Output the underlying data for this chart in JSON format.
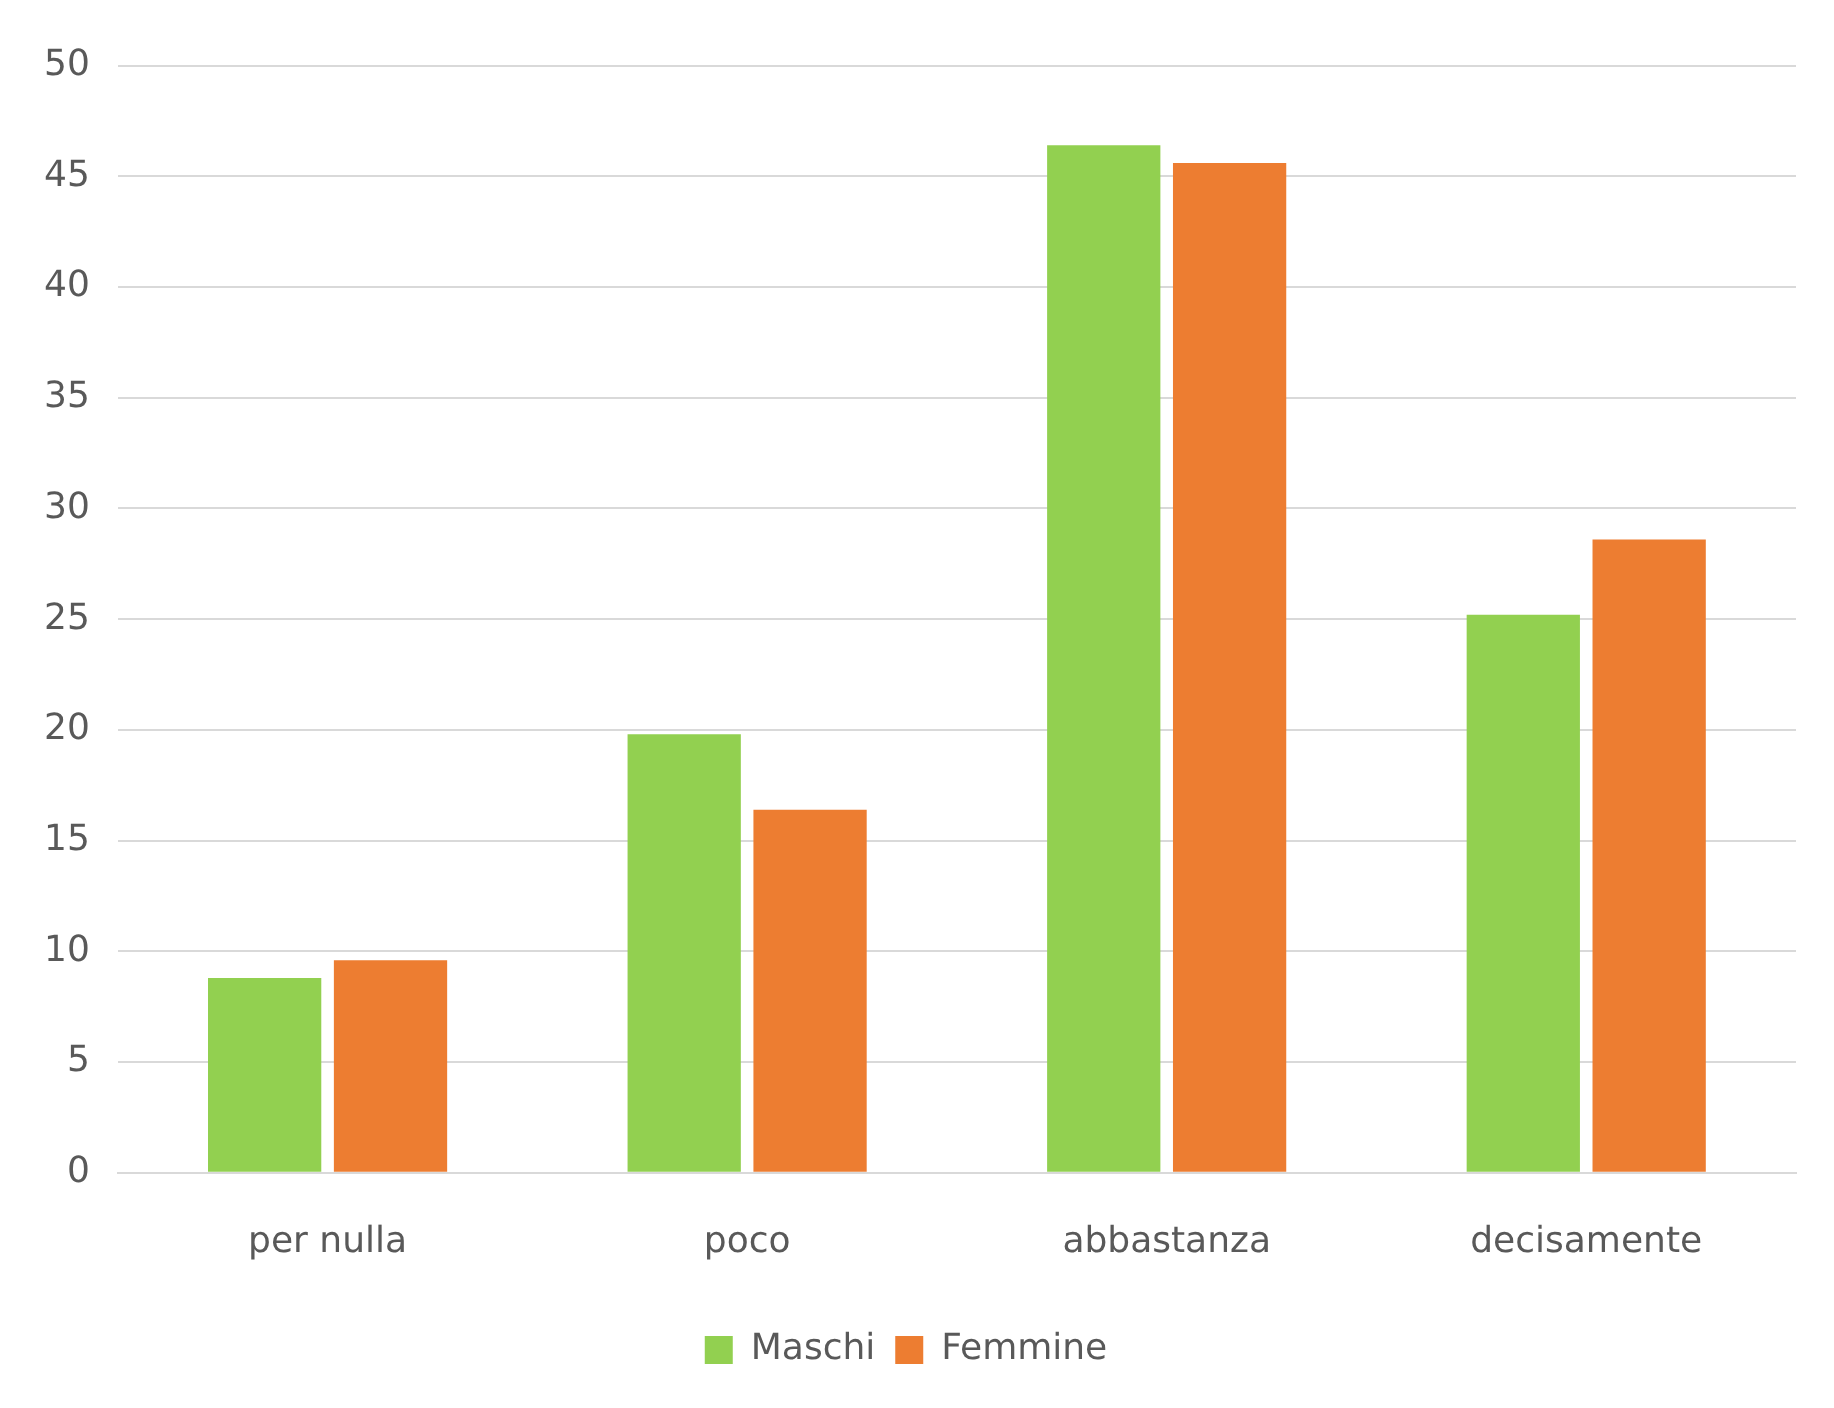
{
  "chart_data": {
    "type": "bar",
    "categories": [
      "per nulla",
      "poco",
      "abbastanza",
      "decisamente"
    ],
    "series": [
      {
        "name": "Maschi",
        "color": "#92d050",
        "values": [
          8.8,
          19.8,
          46.4,
          25.2
        ]
      },
      {
        "name": "Femmine",
        "color": "#ed7d31",
        "values": [
          9.6,
          16.4,
          45.6,
          28.6
        ]
      }
    ],
    "ylim": [
      0,
      50
    ],
    "yticks": [
      0,
      5,
      10,
      15,
      20,
      25,
      30,
      35,
      40,
      45,
      50
    ],
    "grid": "y",
    "legend": "bottom"
  }
}
